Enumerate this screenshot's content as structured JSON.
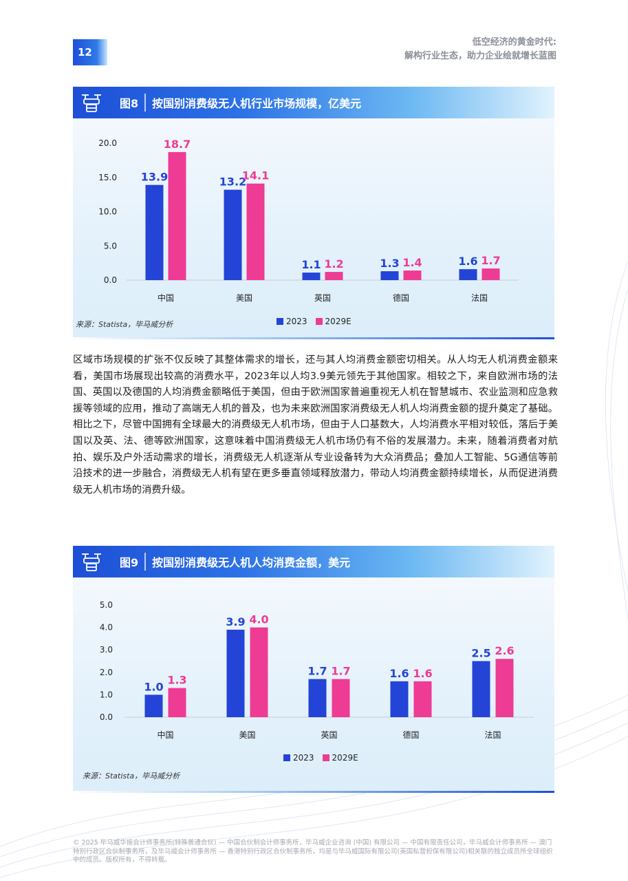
{
  "page": {
    "number": "12",
    "header_line1": "低空经济的黄金时代:",
    "header_line2": "解构行业生态，助力企业绘就增长蓝图"
  },
  "colors": {
    "series_2023": "#2344d6",
    "series_2029": "#ee3b93",
    "accent": "#1e4fd8"
  },
  "figure8": {
    "number": "图8",
    "title": "按国别消费级无人机行业市场规模，亿美元",
    "icon": "drone-icon",
    "source": "来源：Statista，毕马威分析",
    "chart_data": {
      "type": "bar",
      "categories": [
        "中国",
        "美国",
        "英国",
        "德国",
        "法国"
      ],
      "series": [
        {
          "name": "2023",
          "values": [
            13.9,
            13.2,
            1.1,
            1.3,
            1.6
          ]
        },
        {
          "name": "2029E",
          "values": [
            18.7,
            14.1,
            1.2,
            1.4,
            1.7
          ]
        }
      ],
      "yticks": [
        "0.0",
        "5.0",
        "10.0",
        "15.0",
        "20.0"
      ],
      "ylim": [
        0,
        20
      ],
      "grid": false,
      "legend": "bottom-center"
    }
  },
  "paragraph": "区域市场规模的扩张不仅反映了其整体需求的增长，还与其人均消费金额密切相关。从人均无人机消费金额来看，美国市场展现出较高的消费水平，2023年以人均3.9美元领先于其他国家。相较之下，来自欧洲市场的法国、英国以及德国的人均消费金额略低于美国，但由于欧洲国家普遍重视无人机在智慧城市、农业监测和应急救援等领域的应用，推动了高端无人机的普及，也为未来欧洲国家消费级无人机人均消费金额的提升奠定了基础。相比之下，尽管中国拥有全球最大的消费级无人机市场，但由于人口基数大，人均消费水平相对较低，落后于美国以及英、法、德等欧洲国家，这意味着中国消费级无人机市场仍有不俗的发展潜力。未来，随着消费者对航拍、娱乐及户外活动需求的增长，消费级无人机逐渐从专业设备转为大众消费品；叠加人工智能、5G通信等前沿技术的进一步融合，消费级无人机有望在更多垂直领域释放潜力，带动人均消费金额持续增长，从而促进消费级无人机市场的消费升级。",
  "figure9": {
    "number": "图9",
    "title": "按国别消费级无人机人均消费金额，美元",
    "icon": "drone-icon",
    "source": "来源：Statista，毕马威分析",
    "chart_data": {
      "type": "bar",
      "categories": [
        "中国",
        "美国",
        "英国",
        "德国",
        "法国"
      ],
      "series": [
        {
          "name": "2023",
          "values": [
            1.0,
            3.9,
            1.7,
            1.6,
            2.5
          ]
        },
        {
          "name": "2029E",
          "values": [
            1.3,
            4.0,
            1.7,
            1.6,
            2.6
          ]
        }
      ],
      "yticks": [
        "0.0",
        "1.0",
        "2.0",
        "3.0",
        "4.0",
        "5.0"
      ],
      "ylim": [
        0,
        5
      ],
      "grid": false,
      "legend": "bottom-center"
    }
  },
  "footer": "© 2025 毕马威华振会计师事务所(特殊普通合伙) — 中国合伙制会计师事务所，毕马威企业咨询 (中国) 有限公司 — 中国有限责任公司，毕马威会计师事务所 — 澳门特别行政区合伙制事务所，及毕马威会计师事务所 — 香港特别行政区合伙制事务所，均是与毕马威国际有限公司(英国私营担保有限公司)相关联的独立成员所全球组织中的成员。版权所有，不得转载。"
}
